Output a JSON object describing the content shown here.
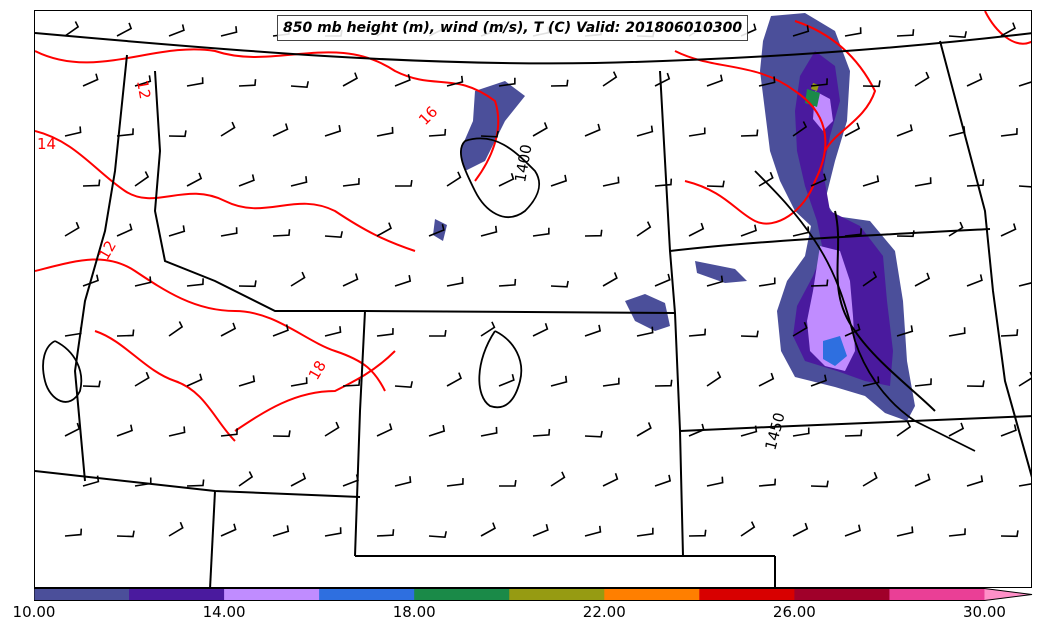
{
  "title": "850 mb height (m), wind (m/s), T (C) Valid: 201806010300",
  "colorbar": {
    "min": 10,
    "max": 31,
    "bins": [
      {
        "from": 10,
        "to": 12,
        "color": "#4b4f9a"
      },
      {
        "from": 12,
        "to": 14,
        "color": "#4a1a9e"
      },
      {
        "from": 14,
        "to": 16,
        "color": "#c08cff"
      },
      {
        "from": 16,
        "to": 18,
        "color": "#2e6fe0"
      },
      {
        "from": 18,
        "to": 20,
        "color": "#1a8a48"
      },
      {
        "from": 20,
        "to": 22,
        "color": "#969b12"
      },
      {
        "from": 22,
        "to": 24,
        "color": "#ff7f00"
      },
      {
        "from": 24,
        "to": 26,
        "color": "#d80000"
      },
      {
        "from": 26,
        "to": 28,
        "color": "#a0002a"
      },
      {
        "from": 28,
        "to": 30,
        "color": "#ea3f96"
      },
      {
        "from": 30,
        "to": 31,
        "color": "#ff90c8"
      }
    ],
    "tick_labels": [
      {
        "value": 10,
        "text": "10.00"
      },
      {
        "value": 14,
        "text": "14.00"
      },
      {
        "value": 18,
        "text": "18.00"
      },
      {
        "value": 22,
        "text": "22.00"
      },
      {
        "value": 26,
        "text": "26.00"
      },
      {
        "value": 30,
        "text": "30.00"
      }
    ]
  },
  "contour_labels": {
    "temperature": [
      "12",
      "14",
      "12",
      "16",
      "18"
    ],
    "height": [
      "1400",
      "1450"
    ]
  },
  "colors": {
    "temperature_contour": "#ff0000",
    "height_contour": "#000000",
    "state_border": "#000000",
    "wind_barb": "#000000"
  }
}
